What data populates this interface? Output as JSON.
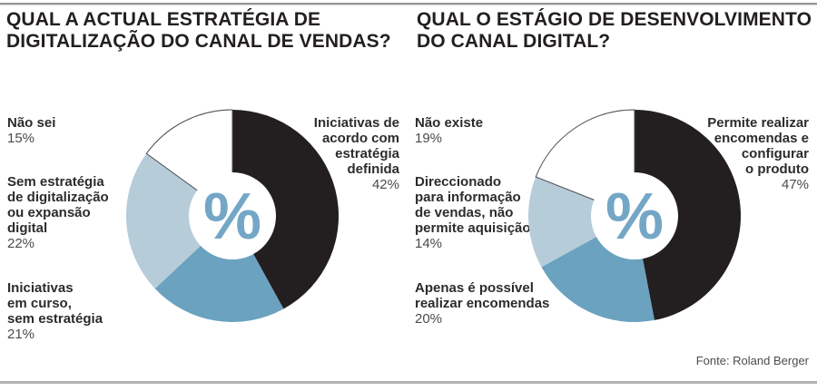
{
  "source": "Fonte: Roland Berger",
  "style": {
    "black": "#231f20",
    "teal": "#6aa2bf",
    "light_blue": "#b7ccd9",
    "white": "#ffffff",
    "white_slice_stroke": "#4d4e52",
    "center_symbol_color": "#74a6c6",
    "hole_ratio": 0.41
  },
  "chart_data": [
    {
      "type": "pie",
      "donut": true,
      "title": "QUAL A ACTUAL ESTRATÉGIA DE DIGITALIZAÇÃO DO CANAL DE VENDAS?",
      "center_label": "%",
      "units": "%",
      "segments": [
        {
          "label": "Iniciativas de acordo com estratégia definida",
          "value": 42,
          "color": "#231f20",
          "display_lines": "Iniciativas de\nacordo com\nestratégia\ndefinida",
          "pct_label": "42%"
        },
        {
          "label": "Iniciativas em curso, sem estratégia",
          "value": 21,
          "color": "#6aa2bf",
          "display_lines": "Iniciativas\nem curso,\nsem estratégia",
          "pct_label": "21%"
        },
        {
          "label": "Sem estratégia de digitalização ou expansão digital",
          "value": 22,
          "color": "#b7ccd9",
          "display_lines": "Sem estratégia\nde digitalização\nou expansão\ndigital",
          "pct_label": "22%"
        },
        {
          "label": "Não sei",
          "value": 15,
          "color": "#ffffff",
          "display_lines": "Não sei",
          "pct_label": "15%"
        }
      ]
    },
    {
      "type": "pie",
      "donut": true,
      "title": "QUAL O ESTÁGIO DE DESENVOLVIMENTO DO CANAL DIGITAL?",
      "center_label": "%",
      "units": "%",
      "segments": [
        {
          "label": "Permite realizar encomendas e configurar o produto",
          "value": 47,
          "color": "#231f20",
          "display_lines": "Permite realizar\nencomendas e\nconfigurar\no produto",
          "pct_label": "47%"
        },
        {
          "label": "Apenas é possível realizar encomendas",
          "value": 20,
          "color": "#6aa2bf",
          "display_lines": "Apenas é possível\nrealizar encomendas",
          "pct_label": "20%"
        },
        {
          "label": "Direccionado para informação de vendas, não permite aquisição",
          "value": 14,
          "color": "#b7ccd9",
          "display_lines": "Direccionado\npara informação\nde vendas, não\npermite aquisição",
          "pct_label": "14%"
        },
        {
          "label": "Não existe",
          "value": 19,
          "color": "#ffffff",
          "display_lines": "Não existe",
          "pct_label": "19%"
        }
      ]
    }
  ]
}
